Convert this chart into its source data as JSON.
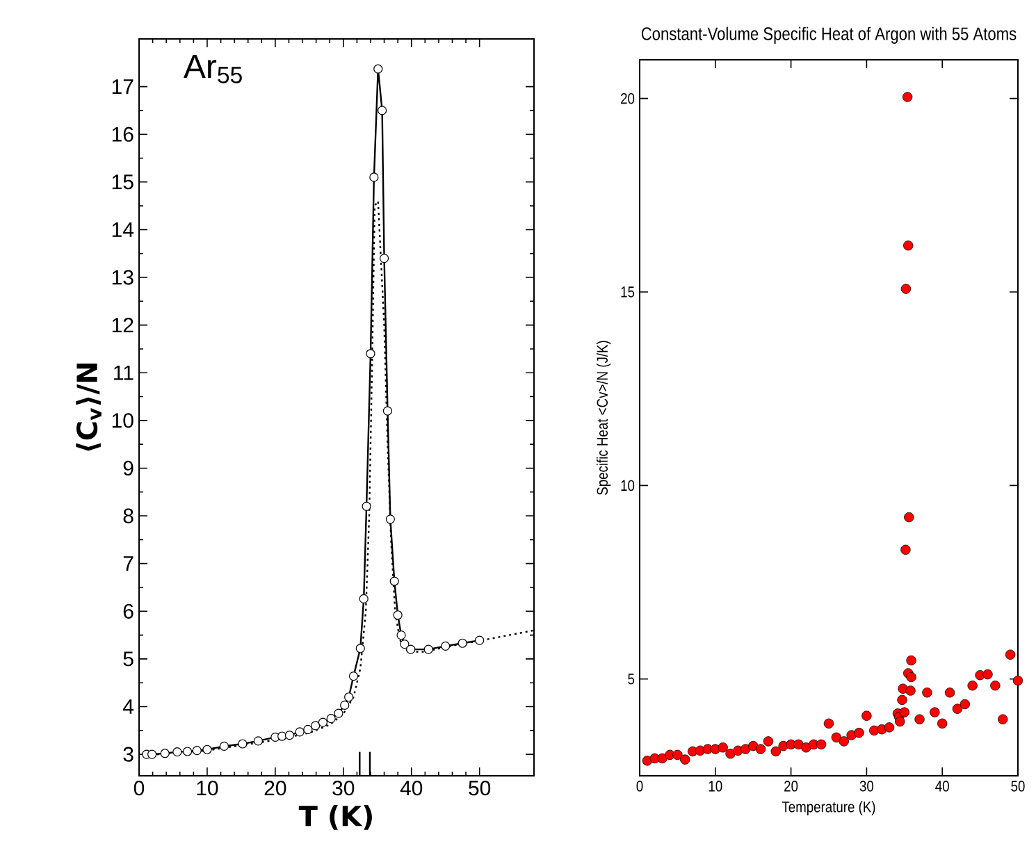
{
  "chart_data": [
    {
      "type": "line",
      "xlabel": "T (K)",
      "ylabel": "⟨C$_{v}$⟩/N",
      "annotations": [
        "Ar$_{55}$"
      ],
      "xlim": [
        0,
        58
      ],
      "ylim": [
        2.55,
        18
      ],
      "xticks": [
        0,
        10,
        20,
        30,
        40,
        50
      ],
      "yticks": [
        3,
        4,
        5,
        6,
        7,
        8,
        9,
        10,
        11,
        12,
        13,
        14,
        15,
        16,
        17
      ],
      "series": [
        {
          "color": "#000000",
          "marker": "circle",
          "line_style": "solid",
          "x": [
            1.1,
            1.9,
            3.8,
            5.6,
            7.1,
            8.5,
            10,
            12.5,
            15.2,
            17.5,
            20,
            21,
            22.1,
            23.6,
            24.8,
            25.9,
            27,
            28.2,
            29.3,
            30.2,
            30.8,
            31.5,
            32.5,
            33,
            33.4,
            34,
            34.5,
            35.1,
            35.7,
            36,
            36.5,
            36.9,
            37.5,
            38,
            38.5,
            39,
            39.9,
            42.5,
            45,
            47.5,
            50
          ],
          "values": [
            3.0,
            3.0,
            3.02,
            3.05,
            3.06,
            3.08,
            3.1,
            3.17,
            3.22,
            3.28,
            3.36,
            3.38,
            3.4,
            3.47,
            3.52,
            3.6,
            3.67,
            3.75,
            3.86,
            4.03,
            4.2,
            4.64,
            5.22,
            6.26,
            8.2,
            11.4,
            15.1,
            17.37,
            16.5,
            13.4,
            10.2,
            7.93,
            6.63,
            5.92,
            5.5,
            5.31,
            5.2,
            5.2,
            5.27,
            5.33,
            5.39
          ]
        },
        {
          "color": "#000000",
          "marker": "none",
          "line_style": "dotted",
          "x": [
            1,
            10,
            20,
            25,
            28,
            30,
            31.5,
            32.5,
            33.3,
            33.8,
            34.2,
            34.6,
            35.1,
            36,
            36.5,
            37,
            37.6,
            38.3,
            39.5,
            42,
            45,
            50,
            58
          ],
          "values": [
            2.98,
            3.08,
            3.3,
            3.45,
            3.62,
            3.85,
            4.2,
            4.8,
            6,
            8,
            11,
            14.5,
            14.6,
            12,
            9.5,
            7.5,
            6,
            5.4,
            5.15,
            5.15,
            5.25,
            5.38,
            5.6
          ]
        },
        {
          "color": "#000000",
          "marker": "none",
          "line_style": "solid",
          "x": [
            32.4,
            32.4
          ],
          "values": [
            2.55,
            3.05
          ]
        },
        {
          "color": "#000000",
          "marker": "none",
          "line_style": "solid",
          "x": [
            33.9,
            33.9
          ],
          "values": [
            2.55,
            3.05
          ]
        }
      ]
    },
    {
      "type": "scatter",
      "title": "Constant-Volume Specific Heat of Argon with 55 Atoms",
      "xlabel": "Temperature (K)",
      "ylabel": "Specific Heat  <Cv>/N   (J/K)",
      "xlim": [
        0,
        50
      ],
      "ylim": [
        2.5,
        21
      ],
      "xticks": [
        0,
        10,
        20,
        30,
        40,
        50
      ],
      "yticks": [
        5,
        10,
        15,
        20
      ],
      "marker": "circle",
      "series": [
        {
          "color": "#ff0000",
          "x": [
            1,
            2,
            3,
            4,
            5,
            6,
            7,
            8,
            9,
            10,
            11,
            12,
            13,
            14,
            15,
            16,
            17,
            18,
            19,
            20,
            21,
            22,
            23,
            24,
            25,
            26,
            27,
            28,
            29,
            30,
            31,
            32,
            33,
            34.1,
            34.3,
            34.4,
            34.7,
            34.8,
            35,
            35.15,
            35.2,
            35.4,
            35.5,
            35.6,
            35.5,
            35.8,
            35.9,
            35.9,
            37,
            38,
            39,
            40,
            41,
            42,
            43,
            44,
            45,
            46,
            47,
            48,
            49,
            50
          ],
          "values": [
            2.89,
            2.95,
            2.95,
            3.04,
            3.04,
            2.92,
            3.13,
            3.15,
            3.19,
            3.19,
            3.23,
            3.07,
            3.15,
            3.19,
            3.27,
            3.19,
            3.39,
            3.13,
            3.27,
            3.31,
            3.31,
            3.23,
            3.31,
            3.31,
            3.85,
            3.49,
            3.39,
            3.55,
            3.61,
            4.05,
            3.67,
            3.7,
            3.75,
            4.11,
            4.02,
            3.9,
            4.46,
            4.75,
            4.14,
            8.34,
            15.08,
            20.04,
            16.2,
            9.18,
            5.15,
            4.7,
            5.05,
            5.48,
            3.96,
            4.65,
            4.14,
            3.85,
            4.65,
            4.23,
            4.35,
            4.83,
            5.1,
            5.12,
            4.83,
            3.96,
            5.63,
            4.96
          ]
        }
      ]
    }
  ]
}
